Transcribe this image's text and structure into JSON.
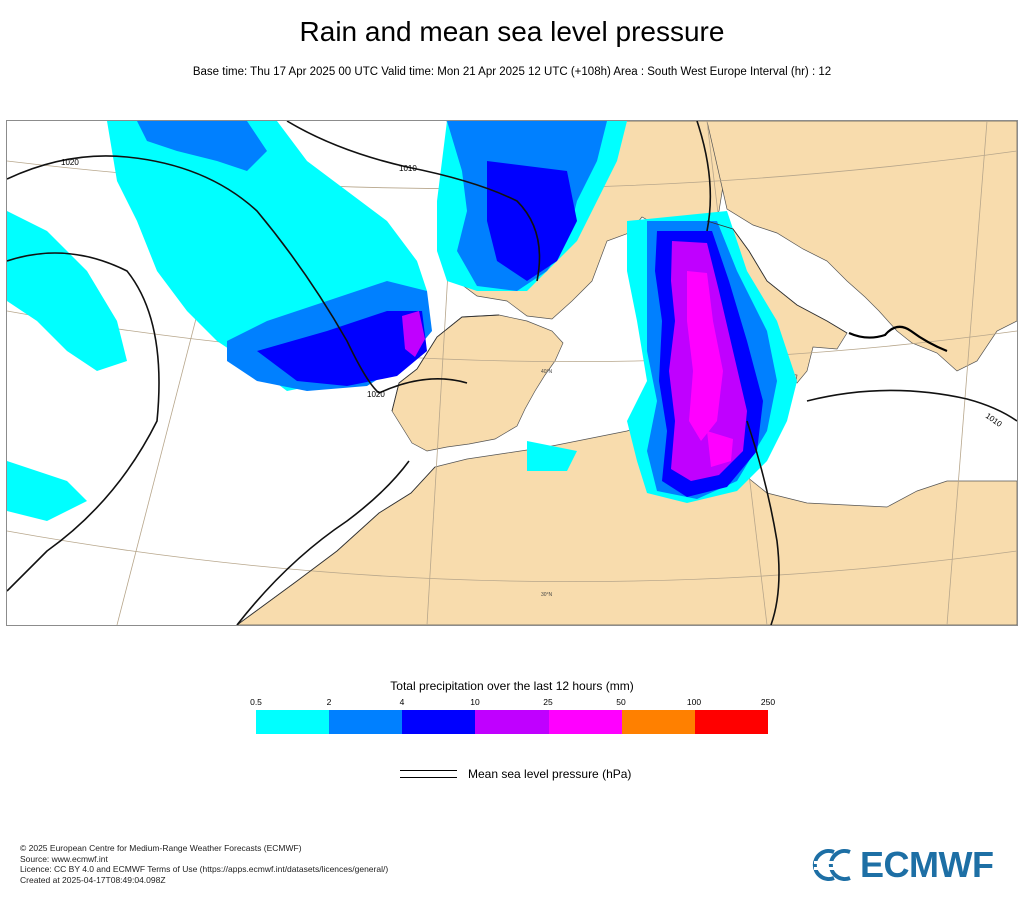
{
  "title": "Rain and mean sea level pressure",
  "subtitle": "Base time: Thu 17 Apr 2025 00 UTC Valid time: Mon 21 Apr 2025 12 UTC (+108h) Area : South West Europe Interval (hr) : 12",
  "map": {
    "isobar_labels": [
      "1020",
      "1010",
      "1020",
      "1010"
    ],
    "lat_labels": [
      "40°N",
      "30°N"
    ],
    "colors": {
      "land": "#f8dcad",
      "sea": "#ffffff",
      "coast": "#333333",
      "isobar": "#111111",
      "graticule": "#b7a68b"
    }
  },
  "legend": {
    "title": "Total precipitation over the last 12 hours (mm)",
    "ticks": [
      "0.5",
      "2",
      "4",
      "10",
      "25",
      "50",
      "100",
      "250"
    ],
    "colors": [
      "#00ffff",
      "#0080ff",
      "#0000ff",
      "#c000ff",
      "#ff00ff",
      "#ff8000",
      "#ff0000"
    ],
    "msl_label": "Mean sea level pressure (hPa)"
  },
  "footer": {
    "lines": [
      "© 2025 European Centre for Medium-Range Weather Forecasts (ECMWF)",
      "Source: www.ecmwf.int",
      "Licence: CC BY 4.0 and ECMWF Terms of Use (https://apps.ecmwf.int/datasets/licences/general/)",
      "Created at 2025-04-17T08:49:04.098Z"
    ]
  },
  "logo": {
    "text": "ECMWF",
    "color": "#1d6fa5"
  }
}
